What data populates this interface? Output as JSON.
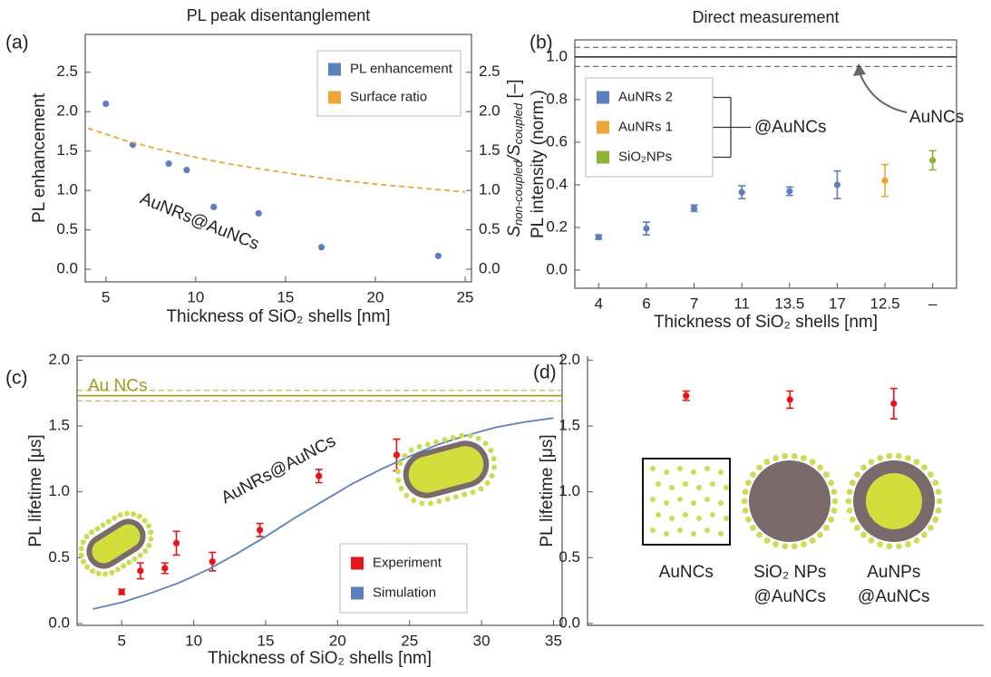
{
  "chart_data": [
    {
      "type": "scatter",
      "panel": "(a)",
      "title": "PL peak disentanglement",
      "xlabel": "Thickness of SiO₂ shells [nm]",
      "ylabel": "PL enhancement",
      "y2label": [
        "S",
        "non-coupled",
        "/S",
        "coupled",
        " [–]"
      ],
      "xlim": [
        3.85,
        25.35
      ],
      "xticks": [
        5,
        10,
        15,
        20,
        25
      ],
      "ylim": [
        -0.16,
        2.98
      ],
      "yticks": [
        {
          "value": 0,
          "label": "0.0"
        },
        0.5,
        {
          "value": 1,
          "label": "1.0"
        },
        1.5,
        {
          "value": 2,
          "label": "2.0"
        },
        2.5
      ],
      "y2lim": [
        -0.16,
        2.98
      ],
      "y2ticks": [
        {
          "value": 0,
          "label": "0.0"
        },
        0.5,
        {
          "value": 1,
          "label": "1.0"
        },
        1.5,
        {
          "value": 2,
          "label": "2.0"
        },
        2.5
      ],
      "legend": "top-right",
      "annotation": "AuNRs@AuNCs",
      "series": [
        {
          "name": "PL enhancement",
          "color": "#5b80bd",
          "kind": "scatter",
          "x": [
            5,
            6.5,
            8.5,
            9.5,
            11,
            13.5,
            17,
            23.5
          ],
          "values": [
            2.1,
            1.58,
            1.34,
            1.26,
            0.79,
            0.71,
            0.28,
            0.17
          ]
        },
        {
          "name": "Surface ratio",
          "color": "#eba637",
          "kind": "dashed",
          "axis": "y2",
          "x": [
            4,
            6,
            8,
            10,
            12,
            14,
            16,
            18,
            20,
            22,
            25
          ],
          "values": [
            1.79,
            1.64,
            1.52,
            1.42,
            1.33,
            1.26,
            1.19,
            1.13,
            1.08,
            1.04,
            0.98
          ]
        }
      ]
    },
    {
      "type": "errorbar",
      "panel": "(b)",
      "title": "Direct measurement",
      "xlabel": "Thickness of SiO₂ shells [nm]",
      "ylabel": "PL intensity  (norm.)",
      "categories": [
        "4",
        "6",
        "7",
        "11",
        "13.5",
        "17",
        "12.5",
        "–"
      ],
      "ylim": [
        -0.085,
        1.08
      ],
      "yticks": [
        {
          "value": 0,
          "label": "0.0"
        },
        0.2,
        0.4,
        0.6,
        0.8,
        {
          "value": 1,
          "label": "1.0"
        }
      ],
      "legend": "top-left",
      "reference": {
        "value": 1,
        "band": [
          0.955,
          1.045
        ],
        "color": "#333333"
      },
      "annotation": "AuNCs",
      "group_label": "@AuNCs",
      "series": [
        {
          "name": "AuNRs 2",
          "color": "#5b80bd",
          "values": [
            0.155,
            0.195,
            0.29,
            0.365,
            0.37,
            0.4,
            null,
            null
          ],
          "errors": [
            0.01,
            0.03,
            0.015,
            0.03,
            0.02,
            0.065,
            null,
            null
          ]
        },
        {
          "name": "AuNRs 1",
          "color": "#eba637",
          "values": [
            null,
            null,
            null,
            null,
            null,
            null,
            0.42,
            null
          ],
          "errors": [
            null,
            null,
            null,
            null,
            null,
            null,
            0.075,
            null
          ]
        },
        {
          "name": "SiO₂NPs",
          "color": "#8db33a",
          "values": [
            null,
            null,
            null,
            null,
            null,
            null,
            null,
            0.515
          ],
          "errors": [
            null,
            null,
            null,
            null,
            null,
            null,
            null,
            0.045
          ]
        }
      ]
    },
    {
      "type": "scatter",
      "panel": "(c)",
      "xlabel": "Thickness of SiO₂ shells [nm]",
      "ylabel": "PL lifetime [μs]",
      "xlim": [
        1.9,
        35.6
      ],
      "xticks": [
        5,
        10,
        15,
        20,
        25,
        30,
        35
      ],
      "ylim": [
        -0.014,
        2.03
      ],
      "yticks": [
        {
          "value": 0,
          "label": "0.0"
        },
        0.5,
        {
          "value": 1,
          "label": "1.0"
        },
        1.5,
        {
          "value": 2,
          "label": "2.0"
        }
      ],
      "legend": "bottom-right",
      "annotation": "AuNRs@AuNCs",
      "reference": {
        "label": "Au NCs",
        "value": 1.73,
        "band": [
          1.69,
          1.77
        ],
        "color": "#9c9c1e"
      },
      "series": [
        {
          "name": "Experiment",
          "color": "#e8141c",
          "kind": "errorbar",
          "x": [
            5,
            6.3,
            8,
            8.8,
            11.3,
            14.6,
            18.7,
            24.1
          ],
          "values": [
            0.24,
            0.4,
            0.42,
            0.61,
            0.47,
            0.71,
            1.12,
            1.28
          ],
          "errors": [
            0.02,
            0.06,
            0.04,
            0.09,
            0.07,
            0.05,
            0.05,
            0.12
          ]
        },
        {
          "name": "Simulation",
          "color": "#5b80bd",
          "kind": "line",
          "x": [
            3,
            5,
            7,
            9,
            11,
            13,
            15,
            17,
            19,
            21,
            23,
            25,
            27,
            29,
            31,
            33,
            35
          ],
          "values": [
            0.11,
            0.16,
            0.23,
            0.31,
            0.41,
            0.53,
            0.66,
            0.8,
            0.93,
            1.06,
            1.17,
            1.27,
            1.36,
            1.43,
            1.49,
            1.53,
            1.56
          ]
        }
      ]
    },
    {
      "type": "errorbar",
      "panel": "(d)",
      "ylabel": "PL lifetime [μs]",
      "categories": [
        [
          "AuNCs"
        ],
        [
          "SiO₂ NPs",
          "@AuNCs"
        ],
        [
          "AuNPs",
          "@AuNCs"
        ]
      ],
      "ylim": [
        -0.014,
        2.03
      ],
      "yticks": [
        {
          "value": 0,
          "label": "0.0"
        },
        0.5,
        {
          "value": 1,
          "label": "1.0"
        },
        1.5,
        {
          "value": 2,
          "label": "2.0"
        }
      ],
      "color": "#e8141c",
      "values": [
        1.73,
        1.7,
        1.67
      ],
      "errors": [
        0.035,
        0.065,
        0.115
      ]
    }
  ]
}
